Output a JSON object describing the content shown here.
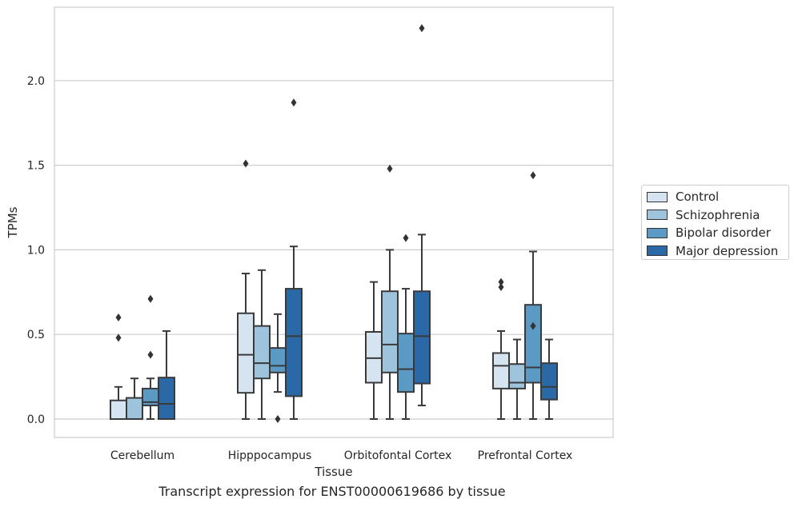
{
  "chart_data": {
    "type": "boxplot",
    "title": "",
    "caption": "Transcript expression for ENST00000619686 by tissue",
    "xlabel": "Tissue",
    "ylabel": "TPMs",
    "ylim": [
      -0.11,
      2.43
    ],
    "yticks": [
      0.0,
      0.5,
      1.0,
      1.5,
      2.0
    ],
    "ytick_labels": [
      "0.0",
      "0.5",
      "1.0",
      "1.5",
      "2.0"
    ],
    "grid": "horizontal",
    "legend_position": "outside-right",
    "categories": [
      "Cerebellum",
      "Hipppocampus",
      "Orbitofontal Cortex",
      "Prefrontal Cortex"
    ],
    "series": [
      {
        "name": "Control",
        "color": "#d6e4f2",
        "boxes": [
          {
            "low": 0.0,
            "q1": 0.0,
            "median": 0.0,
            "q3": 0.11,
            "high": 0.19,
            "outliers": [
              0.6,
              0.48
            ]
          },
          {
            "low": 0.0,
            "q1": 0.155,
            "median": 0.38,
            "q3": 0.625,
            "high": 0.86,
            "outliers": [
              1.51
            ]
          },
          {
            "low": 0.0,
            "q1": 0.215,
            "median": 0.36,
            "q3": 0.515,
            "high": 0.81,
            "outliers": []
          },
          {
            "low": 0.0,
            "q1": 0.18,
            "median": 0.315,
            "q3": 0.39,
            "high": 0.52,
            "outliers": [
              0.81,
              0.78
            ]
          }
        ]
      },
      {
        "name": "Schizophrenia",
        "color": "#9dc3dd",
        "boxes": [
          {
            "low": 0.0,
            "q1": 0.0,
            "median": 0.0,
            "q3": 0.125,
            "high": 0.24,
            "outliers": []
          },
          {
            "low": 0.0,
            "q1": 0.24,
            "median": 0.33,
            "q3": 0.55,
            "high": 0.88,
            "outliers": []
          },
          {
            "low": 0.0,
            "q1": 0.275,
            "median": 0.44,
            "q3": 0.755,
            "high": 1.0,
            "outliers": [
              1.48
            ]
          },
          {
            "low": 0.0,
            "q1": 0.18,
            "median": 0.215,
            "q3": 0.325,
            "high": 0.47,
            "outliers": []
          }
        ]
      },
      {
        "name": "Bipolar disorder",
        "color": "#5a9ac5",
        "boxes": [
          {
            "low": 0.0,
            "q1": 0.08,
            "median": 0.1,
            "q3": 0.18,
            "high": 0.24,
            "outliers": [
              0.71,
              0.38
            ]
          },
          {
            "low": 0.16,
            "q1": 0.275,
            "median": 0.315,
            "q3": 0.42,
            "high": 0.62,
            "outliers": [
              0.0
            ]
          },
          {
            "low": 0.0,
            "q1": 0.16,
            "median": 0.295,
            "q3": 0.505,
            "high": 0.77,
            "outliers": [
              1.07
            ]
          },
          {
            "low": 0.0,
            "q1": 0.215,
            "median": 0.305,
            "q3": 0.675,
            "high": 0.99,
            "outliers": [
              0.55,
              1.44
            ]
          }
        ]
      },
      {
        "name": "Major depression",
        "color": "#2b68a6",
        "boxes": [
          {
            "low": 0.0,
            "q1": 0.0,
            "median": 0.09,
            "q3": 0.245,
            "high": 0.52,
            "outliers": []
          },
          {
            "low": 0.0,
            "q1": 0.135,
            "median": 0.49,
            "q3": 0.77,
            "high": 1.02,
            "outliers": [
              1.87
            ]
          },
          {
            "low": 0.08,
            "q1": 0.21,
            "median": 0.49,
            "q3": 0.755,
            "high": 1.09,
            "outliers": [
              2.31
            ]
          },
          {
            "low": 0.0,
            "q1": 0.115,
            "median": 0.19,
            "q3": 0.33,
            "high": 0.47,
            "outliers": []
          }
        ]
      }
    ]
  }
}
